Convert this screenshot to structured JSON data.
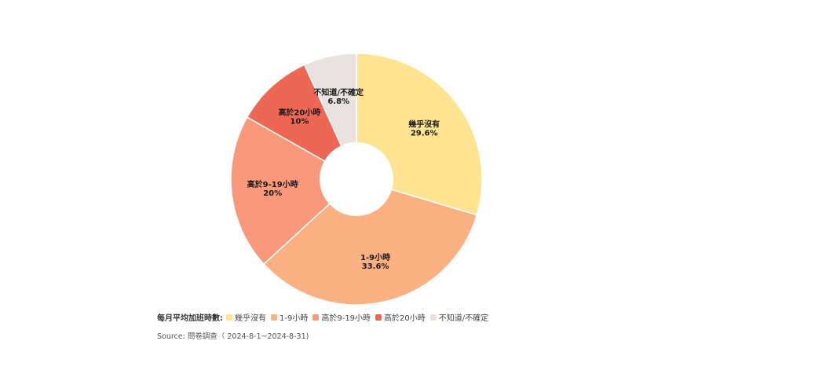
{
  "chart_data": {
    "type": "pie",
    "categories": [
      "幾乎沒有",
      "1-9小時",
      "高於9-19小時",
      "高於20小時",
      "不知道/不確定"
    ],
    "values": [
      29.6,
      33.6,
      20,
      10,
      6.8
    ],
    "value_labels": [
      "29.6%",
      "33.6%",
      "20%",
      "10%",
      "6.8%"
    ],
    "colors": [
      "#FEE390",
      "#FBB082",
      "#F9987A",
      "#EE6754",
      "#E8E2E1"
    ],
    "legend_title": "每月平均加班時數:",
    "legend_placement": "bottom-left",
    "donut": true
  },
  "source": "Source: 問卷調查（ 2024-8-1~2024-8-31)"
}
